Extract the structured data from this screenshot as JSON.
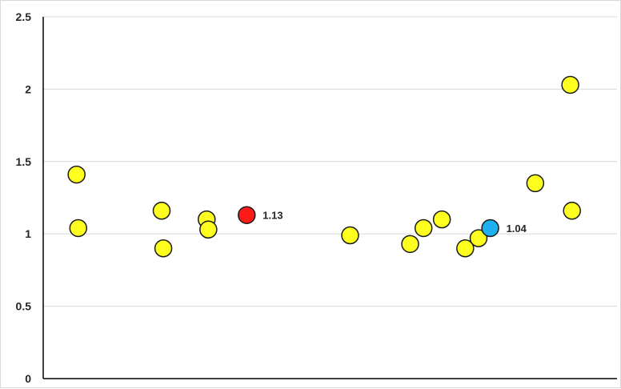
{
  "chart_data": {
    "type": "scatter",
    "title": "",
    "xlabel": "",
    "ylabel": "",
    "ylim": [
      0,
      2.5
    ],
    "y_ticks": [
      "0",
      "0.5",
      "1",
      "1.5",
      "2",
      "2.5"
    ],
    "grid": "horizontal",
    "x_axis_tick_labels": "none",
    "colors": {
      "default_point": "#ffff1f",
      "highlight_red": "#ff1a1a",
      "highlight_blue": "#1fb0f0",
      "point_stroke": "#1a1a1a",
      "gridline": "#d9d9d9",
      "axis": "#000000"
    },
    "series": [
      {
        "color": "#ffff1f",
        "points": [
          {
            "x": 1.0,
            "y": 1.41
          },
          {
            "x": 1.05,
            "y": 1.04
          },
          {
            "x": 3.55,
            "y": 1.16
          },
          {
            "x": 3.6,
            "y": 0.9
          },
          {
            "x": 4.9,
            "y": 1.1
          },
          {
            "x": 4.95,
            "y": 1.03
          },
          {
            "x": 9.2,
            "y": 0.99
          },
          {
            "x": 11.0,
            "y": 0.93
          },
          {
            "x": 11.4,
            "y": 1.04
          },
          {
            "x": 11.95,
            "y": 1.1
          },
          {
            "x": 12.65,
            "y": 0.9
          },
          {
            "x": 13.05,
            "y": 0.97
          },
          {
            "x": 14.75,
            "y": 1.35
          },
          {
            "x": 15.8,
            "y": 2.03
          },
          {
            "x": 15.85,
            "y": 1.16
          }
        ]
      },
      {
        "color": "#ff1a1a",
        "points": [
          {
            "x": 6.1,
            "y": 1.13,
            "label": "1.13"
          }
        ]
      },
      {
        "color": "#1fb0f0",
        "points": [
          {
            "x": 13.4,
            "y": 1.04,
            "label": "1.04"
          }
        ]
      }
    ],
    "xlim": [
      0,
      17.2
    ]
  }
}
